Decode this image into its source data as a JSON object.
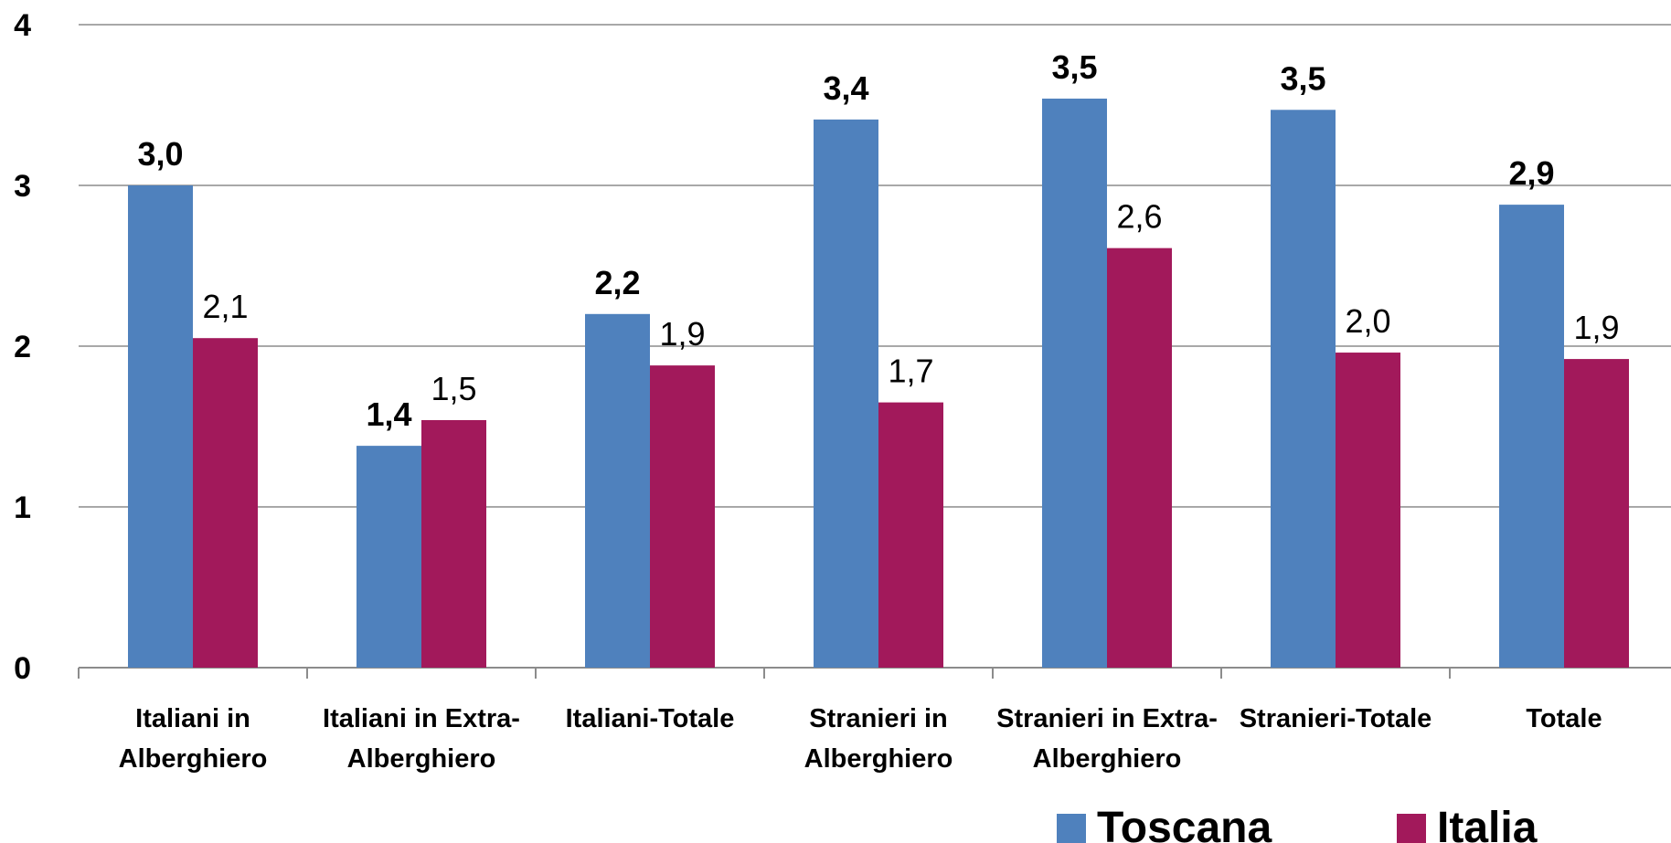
{
  "chart_data": {
    "type": "bar",
    "categories": [
      [
        "Italiani in",
        "Alberghiero"
      ],
      [
        "Italiani in Extra-",
        "Alberghiero"
      ],
      [
        "Italiani-Totale"
      ],
      [
        "Stranieri in",
        "Alberghiero"
      ],
      [
        "Stranieri in Extra-",
        "Alberghiero"
      ],
      [
        "Stranieri-Totale"
      ],
      [
        "Totale"
      ]
    ],
    "series": [
      {
        "name": "Toscana",
        "color": "#4F81BD",
        "values": [
          3.0,
          1.38,
          2.2,
          3.41,
          3.54,
          3.47,
          2.88
        ],
        "labels": [
          "3,0",
          "1,4",
          "2,2",
          "3,4",
          "3,5",
          "3,5",
          "2,9"
        ],
        "label_style": "bold"
      },
      {
        "name": "Italia",
        "color": "#A2195B",
        "values": [
          2.05,
          1.54,
          1.88,
          1.65,
          2.61,
          1.96,
          1.92
        ],
        "labels": [
          "2,1",
          "1,5",
          "1,9",
          "1,7",
          "2,6",
          "2,0",
          "1,9"
        ],
        "label_style": "regular"
      }
    ],
    "y_ticks": [
      "0",
      "1",
      "2",
      "3",
      "4"
    ],
    "ylim": [
      0,
      4
    ],
    "grid": true,
    "legend_position": "bottom-right",
    "title": "",
    "xlabel": "",
    "ylabel": ""
  }
}
